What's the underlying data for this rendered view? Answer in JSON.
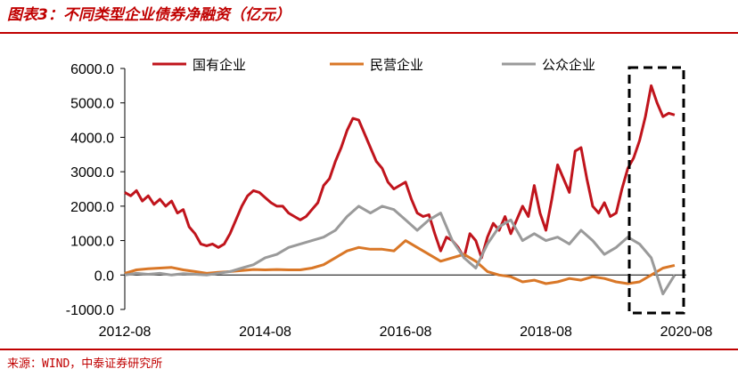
{
  "header": {
    "title": "图表3：不同类型企业债券净融资（亿元）"
  },
  "footer": {
    "source": "来源：WIND，中泰证券研究所"
  },
  "colors": {
    "accent": "#c00000",
    "soe": "#c0141c",
    "private": "#d97727",
    "public": "#9a9a9a",
    "axis": "#000000"
  },
  "chart_data": {
    "type": "line",
    "title": "图表3：不同类型企业债券净融资（亿元）",
    "ylim": [
      -1000,
      6000
    ],
    "yticks": [
      -1000,
      0,
      1000,
      2000,
      3000,
      4000,
      5000,
      6000
    ],
    "ytick_labels": [
      "-1000.0",
      "0.0",
      "1000.0",
      "2000.0",
      "3000.0",
      "4000.0",
      "5000.0",
      "6000.0"
    ],
    "x_range": [
      "2012-08",
      "2020-08"
    ],
    "xtick_labels": [
      "2012-08",
      "2014-08",
      "2016-08",
      "2018-08",
      "2020-08"
    ],
    "legend_position": "top",
    "annotation": "dashed box highlighting 2020",
    "series": [
      {
        "name": "国有企业",
        "color": "#c0141c",
        "points": [
          [
            "2012-08",
            2400
          ],
          [
            "2012-09",
            2300
          ],
          [
            "2012-10",
            2450
          ],
          [
            "2012-11",
            2150
          ],
          [
            "2012-12",
            2300
          ],
          [
            "2013-01",
            2050
          ],
          [
            "2013-02",
            2200
          ],
          [
            "2013-03",
            2000
          ],
          [
            "2013-04",
            2150
          ],
          [
            "2013-05",
            1800
          ],
          [
            "2013-06",
            1900
          ],
          [
            "2013-07",
            1400
          ],
          [
            "2013-08",
            1200
          ],
          [
            "2013-09",
            900
          ],
          [
            "2013-10",
            850
          ],
          [
            "2013-11",
            900
          ],
          [
            "2013-12",
            800
          ],
          [
            "2014-01",
            900
          ],
          [
            "2014-02",
            1200
          ],
          [
            "2014-03",
            1600
          ],
          [
            "2014-04",
            2000
          ],
          [
            "2014-05",
            2300
          ],
          [
            "2014-06",
            2450
          ],
          [
            "2014-07",
            2400
          ],
          [
            "2014-08",
            2250
          ],
          [
            "2014-09",
            2100
          ],
          [
            "2014-10",
            2000
          ],
          [
            "2014-11",
            2000
          ],
          [
            "2014-12",
            1800
          ],
          [
            "2015-01",
            1700
          ],
          [
            "2015-02",
            1600
          ],
          [
            "2015-03",
            1700
          ],
          [
            "2015-04",
            1900
          ],
          [
            "2015-05",
            2100
          ],
          [
            "2015-06",
            2600
          ],
          [
            "2015-07",
            2800
          ],
          [
            "2015-08",
            3300
          ],
          [
            "2015-09",
            3700
          ],
          [
            "2015-10",
            4200
          ],
          [
            "2015-11",
            4550
          ],
          [
            "2015-12",
            4500
          ],
          [
            "2016-01",
            4100
          ],
          [
            "2016-02",
            3700
          ],
          [
            "2016-03",
            3300
          ],
          [
            "2016-04",
            3100
          ],
          [
            "2016-05",
            2700
          ],
          [
            "2016-06",
            2500
          ],
          [
            "2016-07",
            2600
          ],
          [
            "2016-08",
            2700
          ],
          [
            "2016-09",
            2200
          ],
          [
            "2016-10",
            1800
          ],
          [
            "2016-11",
            1700
          ],
          [
            "2016-12",
            1750
          ],
          [
            "2017-01",
            1200
          ],
          [
            "2017-02",
            700
          ],
          [
            "2017-03",
            1100
          ],
          [
            "2017-04",
            1000
          ],
          [
            "2017-05",
            800
          ],
          [
            "2017-06",
            500
          ],
          [
            "2017-07",
            1200
          ],
          [
            "2017-08",
            1000
          ],
          [
            "2017-09",
            500
          ],
          [
            "2017-10",
            1100
          ],
          [
            "2017-11",
            1500
          ],
          [
            "2017-12",
            1300
          ],
          [
            "2018-01",
            1700
          ],
          [
            "2018-02",
            1200
          ],
          [
            "2018-03",
            1600
          ],
          [
            "2018-04",
            2000
          ],
          [
            "2018-05",
            1700
          ],
          [
            "2018-06",
            2600
          ],
          [
            "2018-07",
            1800
          ],
          [
            "2018-08",
            1300
          ],
          [
            "2018-09",
            2200
          ],
          [
            "2018-10",
            3200
          ],
          [
            "2018-11",
            2800
          ],
          [
            "2018-12",
            2400
          ],
          [
            "2019-01",
            3600
          ],
          [
            "2019-02",
            3700
          ],
          [
            "2019-03",
            2800
          ],
          [
            "2019-04",
            2000
          ],
          [
            "2019-05",
            1800
          ],
          [
            "2019-06",
            2100
          ],
          [
            "2019-07",
            1700
          ],
          [
            "2019-08",
            1800
          ],
          [
            "2019-09",
            2500
          ],
          [
            "2019-10",
            3100
          ],
          [
            "2019-11",
            3400
          ],
          [
            "2019-12",
            3900
          ],
          [
            "2020-01",
            4600
          ],
          [
            "2020-02",
            5500
          ],
          [
            "2020-03",
            5000
          ],
          [
            "2020-04",
            4600
          ],
          [
            "2020-05",
            4700
          ],
          [
            "2020-06",
            4650
          ]
        ]
      },
      {
        "name": "民营企业",
        "color": "#d97727",
        "points": [
          [
            "2012-08",
            50
          ],
          [
            "2012-10",
            150
          ],
          [
            "2012-12",
            180
          ],
          [
            "2013-02",
            200
          ],
          [
            "2013-04",
            220
          ],
          [
            "2013-06",
            150
          ],
          [
            "2013-08",
            100
          ],
          [
            "2013-10",
            50
          ],
          [
            "2013-12",
            80
          ],
          [
            "2014-02",
            100
          ],
          [
            "2014-04",
            130
          ],
          [
            "2014-06",
            160
          ],
          [
            "2014-08",
            150
          ],
          [
            "2014-10",
            160
          ],
          [
            "2014-12",
            150
          ],
          [
            "2015-02",
            150
          ],
          [
            "2015-04",
            200
          ],
          [
            "2015-06",
            300
          ],
          [
            "2015-08",
            500
          ],
          [
            "2015-10",
            700
          ],
          [
            "2015-12",
            800
          ],
          [
            "2016-02",
            750
          ],
          [
            "2016-04",
            750
          ],
          [
            "2016-06",
            700
          ],
          [
            "2016-08",
            1000
          ],
          [
            "2016-10",
            800
          ],
          [
            "2016-12",
            600
          ],
          [
            "2017-02",
            400
          ],
          [
            "2017-04",
            500
          ],
          [
            "2017-06",
            600
          ],
          [
            "2017-08",
            400
          ],
          [
            "2017-10",
            100
          ],
          [
            "2017-12",
            0
          ],
          [
            "2018-02",
            -50
          ],
          [
            "2018-04",
            -200
          ],
          [
            "2018-06",
            -150
          ],
          [
            "2018-08",
            -250
          ],
          [
            "2018-10",
            -200
          ],
          [
            "2018-12",
            -100
          ],
          [
            "2019-02",
            -150
          ],
          [
            "2019-04",
            -50
          ],
          [
            "2019-06",
            -100
          ],
          [
            "2019-08",
            -200
          ],
          [
            "2019-10",
            -250
          ],
          [
            "2019-12",
            -200
          ],
          [
            "2020-02",
            0
          ],
          [
            "2020-04",
            200
          ],
          [
            "2020-06",
            280
          ]
        ]
      },
      {
        "name": "公众企业",
        "color": "#9a9a9a",
        "points": [
          [
            "2012-08",
            0
          ],
          [
            "2012-10",
            50
          ],
          [
            "2012-12",
            20
          ],
          [
            "2013-02",
            50
          ],
          [
            "2013-04",
            0
          ],
          [
            "2013-06",
            40
          ],
          [
            "2013-08",
            20
          ],
          [
            "2013-10",
            0
          ],
          [
            "2013-12",
            50
          ],
          [
            "2014-02",
            100
          ],
          [
            "2014-04",
            200
          ],
          [
            "2014-06",
            300
          ],
          [
            "2014-08",
            500
          ],
          [
            "2014-10",
            600
          ],
          [
            "2014-12",
            800
          ],
          [
            "2015-02",
            900
          ],
          [
            "2015-04",
            1000
          ],
          [
            "2015-06",
            1100
          ],
          [
            "2015-08",
            1300
          ],
          [
            "2015-10",
            1700
          ],
          [
            "2015-12",
            2000
          ],
          [
            "2016-02",
            1800
          ],
          [
            "2016-04",
            2000
          ],
          [
            "2016-06",
            1900
          ],
          [
            "2016-08",
            1600
          ],
          [
            "2016-10",
            1300
          ],
          [
            "2016-12",
            1600
          ],
          [
            "2017-02",
            1800
          ],
          [
            "2017-04",
            1000
          ],
          [
            "2017-06",
            500
          ],
          [
            "2017-08",
            200
          ],
          [
            "2017-10",
            900
          ],
          [
            "2017-12",
            1400
          ],
          [
            "2018-02",
            1600
          ],
          [
            "2018-04",
            1000
          ],
          [
            "2018-06",
            1200
          ],
          [
            "2018-08",
            1000
          ],
          [
            "2018-10",
            1100
          ],
          [
            "2018-12",
            900
          ],
          [
            "2019-02",
            1300
          ],
          [
            "2019-04",
            1000
          ],
          [
            "2019-06",
            600
          ],
          [
            "2019-08",
            800
          ],
          [
            "2019-10",
            1100
          ],
          [
            "2019-12",
            900
          ],
          [
            "2020-02",
            500
          ],
          [
            "2020-04",
            -550
          ],
          [
            "2020-06",
            0
          ]
        ]
      }
    ]
  }
}
